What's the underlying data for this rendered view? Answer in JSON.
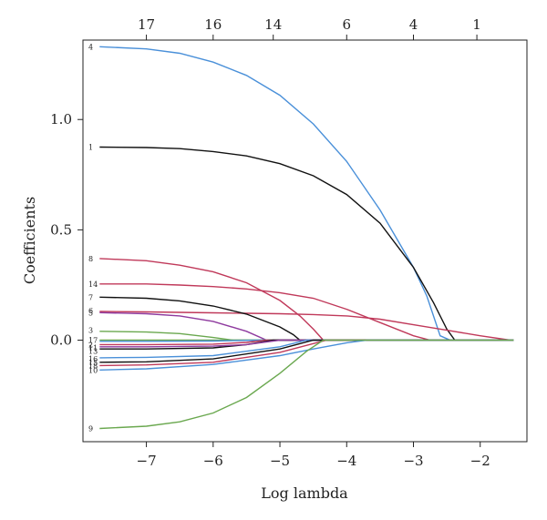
{
  "chart_data": {
    "type": "line",
    "title": "",
    "xlabel": "Log lambda",
    "ylabel": "Coefficients",
    "xlim": [
      -7.95,
      -1.3
    ],
    "ylim": [
      -0.46,
      1.36
    ],
    "x_ticks": [
      -7,
      -6,
      -5,
      -4,
      -3,
      -2
    ],
    "y_ticks": [
      0.0,
      0.5,
      1.0
    ],
    "top_axis": {
      "label": "",
      "ticks": [
        {
          "x": -7.0,
          "label": "17"
        },
        {
          "x": -6.0,
          "label": "16"
        },
        {
          "x": -5.1,
          "label": "14"
        },
        {
          "x": -4.0,
          "label": "6"
        },
        {
          "x": -3.0,
          "label": "4"
        },
        {
          "x": -2.05,
          "label": "1"
        }
      ]
    },
    "grid": false,
    "legend": "none",
    "series": [
      {
        "name": "4",
        "color": "#4a90d9",
        "x": [
          -7.7,
          -7.0,
          -6.5,
          -6.0,
          -5.5,
          -5.0,
          -4.5,
          -4.0,
          -3.5,
          -3.0,
          -2.8,
          -2.6,
          -2.45
        ],
        "y": [
          1.33,
          1.32,
          1.3,
          1.26,
          1.2,
          1.11,
          0.98,
          0.81,
          0.59,
          0.33,
          0.2,
          0.02,
          0.0
        ]
      },
      {
        "name": "1",
        "color": "#111111",
        "x": [
          -7.7,
          -7.0,
          -6.5,
          -6.0,
          -5.5,
          -5.0,
          -4.5,
          -4.0,
          -3.5,
          -3.0,
          -2.7,
          -2.5,
          -2.38
        ],
        "y": [
          0.875,
          0.873,
          0.868,
          0.855,
          0.835,
          0.8,
          0.745,
          0.66,
          0.53,
          0.33,
          0.17,
          0.05,
          0.0
        ]
      },
      {
        "name": "8",
        "color": "#c0395a",
        "x": [
          -7.7,
          -7.0,
          -6.5,
          -6.0,
          -5.5,
          -5.0,
          -4.7,
          -4.5,
          -4.35
        ],
        "y": [
          0.37,
          0.36,
          0.34,
          0.31,
          0.26,
          0.18,
          0.11,
          0.05,
          0.0
        ]
      },
      {
        "name": "14",
        "color": "#c0395a",
        "x": [
          -7.7,
          -7.0,
          -6.5,
          -6.0,
          -5.5,
          -5.0,
          -4.5,
          -4.0,
          -3.5,
          -3.0,
          -2.75
        ],
        "y": [
          0.255,
          0.255,
          0.25,
          0.243,
          0.232,
          0.215,
          0.19,
          0.14,
          0.08,
          0.02,
          0.0
        ]
      },
      {
        "name": "6",
        "color": "#c0395a",
        "x": [
          -7.7,
          -7.0,
          -6.5,
          -6.0,
          -5.5,
          -5.0,
          -4.5,
          -4.0,
          -3.5,
          -3.0,
          -2.5,
          -2.0,
          -1.55
        ],
        "y": [
          0.13,
          0.128,
          0.126,
          0.124,
          0.122,
          0.12,
          0.116,
          0.11,
          0.095,
          0.07,
          0.045,
          0.02,
          0.0
        ]
      },
      {
        "name": "7",
        "color": "#111111",
        "x": [
          -7.7,
          -7.0,
          -6.5,
          -6.0,
          -5.5,
          -5.0,
          -4.8,
          -4.7
        ],
        "y": [
          0.195,
          0.19,
          0.178,
          0.155,
          0.118,
          0.06,
          0.025,
          0.0
        ]
      },
      {
        "name": "5",
        "color": "#8e3a9e",
        "x": [
          -7.7,
          -7.0,
          -6.5,
          -6.0,
          -5.5,
          -5.2
        ],
        "y": [
          0.125,
          0.12,
          0.11,
          0.085,
          0.04,
          0.0
        ]
      },
      {
        "name": "3",
        "color": "#6aa84f",
        "x": [
          -7.7,
          -7.0,
          -6.5,
          -6.0,
          -5.7
        ],
        "y": [
          0.04,
          0.037,
          0.03,
          0.012,
          0.0
        ]
      },
      {
        "name": "17",
        "color": "#6aa84f",
        "x": [
          -7.7,
          -7.0,
          -6.0,
          -5.4
        ],
        "y": [
          0.0,
          0.0,
          0.0,
          0.0
        ]
      },
      {
        "name": "2",
        "color": "#4a90d9",
        "x": [
          -7.7,
          -7.0,
          -6.0,
          -5.3
        ],
        "y": [
          -0.005,
          -0.005,
          -0.004,
          0.0
        ]
      },
      {
        "name": "11",
        "color": "#c0395a",
        "x": [
          -7.7,
          -7.0,
          -6.0,
          -5.5,
          -5.2
        ],
        "y": [
          -0.02,
          -0.02,
          -0.018,
          -0.01,
          0.0
        ]
      },
      {
        "name": "13",
        "color": "#111111",
        "x": [
          -7.7,
          -7.0,
          -6.0,
          -5.5,
          -5.1
        ],
        "y": [
          -0.04,
          -0.04,
          -0.035,
          -0.02,
          0.0
        ]
      },
      {
        "name": "12",
        "color": "#8e3a9e",
        "x": [
          -7.7,
          -7.0,
          -6.0,
          -5.5,
          -5.0
        ],
        "y": [
          -0.03,
          -0.03,
          -0.027,
          -0.02,
          0.0
        ]
      },
      {
        "name": "16",
        "color": "#4a90d9",
        "x": [
          -7.7,
          -7.0,
          -6.0,
          -5.0,
          -4.6
        ],
        "y": [
          -0.08,
          -0.078,
          -0.07,
          -0.03,
          0.0
        ]
      },
      {
        "name": "15",
        "color": "#111111",
        "x": [
          -7.7,
          -7.0,
          -6.0,
          -5.0,
          -4.5
        ],
        "y": [
          -0.1,
          -0.098,
          -0.085,
          -0.04,
          0.0
        ]
      },
      {
        "name": "18",
        "color": "#c0395a",
        "x": [
          -7.7,
          -7.0,
          -6.0,
          -5.0,
          -4.3
        ],
        "y": [
          -0.115,
          -0.112,
          -0.1,
          -0.055,
          0.0
        ]
      },
      {
        "name": "10",
        "color": "#4a90d9",
        "x": [
          -7.7,
          -7.0,
          -6.0,
          -5.0,
          -4.5,
          -4.0,
          -3.7
        ],
        "y": [
          -0.135,
          -0.13,
          -0.11,
          -0.07,
          -0.04,
          -0.012,
          0.0
        ]
      },
      {
        "name": "9",
        "color": "#6aa84f",
        "x": [
          -7.7,
          -7.0,
          -6.5,
          -6.0,
          -5.5,
          -5.0,
          -4.6,
          -4.35
        ],
        "y": [
          -0.4,
          -0.39,
          -0.37,
          -0.33,
          -0.26,
          -0.15,
          -0.05,
          0.0
        ]
      }
    ],
    "curve_labels": [
      {
        "text": "4",
        "y": 1.33
      },
      {
        "text": "1",
        "y": 0.875
      },
      {
        "text": "8",
        "y": 0.37
      },
      {
        "text": "14",
        "y": 0.255
      },
      {
        "text": "7",
        "y": 0.195
      },
      {
        "text": "6",
        "y": 0.135
      },
      {
        "text": "5",
        "y": 0.125
      },
      {
        "text": "3",
        "y": 0.045
      },
      {
        "text": "17",
        "y": 0.0
      },
      {
        "text": "2",
        "y": -0.02
      },
      {
        "text": "11",
        "y": -0.035
      },
      {
        "text": "13",
        "y": -0.05
      },
      {
        "text": "16",
        "y": -0.085
      },
      {
        "text": "15",
        "y": -0.1
      },
      {
        "text": "18",
        "y": -0.115
      },
      {
        "text": "10",
        "y": -0.135
      },
      {
        "text": "9",
        "y": -0.4
      }
    ]
  }
}
